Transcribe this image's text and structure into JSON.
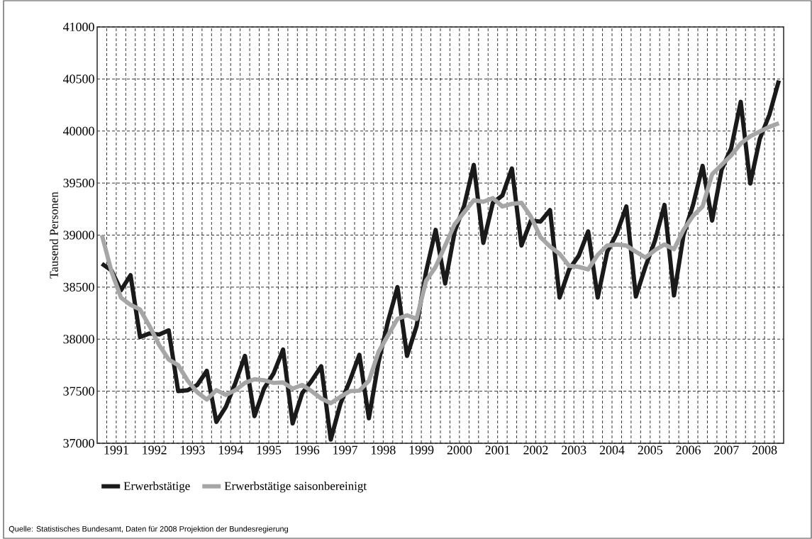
{
  "chart_data": {
    "type": "line",
    "ylabel": "Tausend Personen",
    "annotations": [
      "Quelle: Statistisches Bundesamt, Daten für 2008 Projektion der Bundesregierung"
    ],
    "x": [
      1991.0,
      1991.25,
      1991.5,
      1991.75,
      1992.0,
      1992.25,
      1992.5,
      1992.75,
      1993.0,
      1993.25,
      1993.5,
      1993.75,
      1994.0,
      1994.25,
      1994.5,
      1994.75,
      1995.0,
      1995.25,
      1995.5,
      1995.75,
      1996.0,
      1996.25,
      1996.5,
      1996.75,
      1997.0,
      1997.25,
      1997.5,
      1997.75,
      1998.0,
      1998.25,
      1998.5,
      1998.75,
      1999.0,
      1999.25,
      1999.5,
      1999.75,
      2000.0,
      2000.25,
      2000.5,
      2000.75,
      2001.0,
      2001.25,
      2001.5,
      2001.75,
      2002.0,
      2002.25,
      2002.5,
      2002.75,
      2003.0,
      2003.25,
      2003.5,
      2003.75,
      2004.0,
      2004.25,
      2004.5,
      2004.75,
      2005.0,
      2005.25,
      2005.5,
      2005.75,
      2006.0,
      2006.25,
      2006.5,
      2006.75,
      2007.0,
      2007.25,
      2007.5,
      2007.75,
      2008.0,
      2008.25,
      2008.5,
      2008.75
    ],
    "series": [
      {
        "name": "Erwerbstätige",
        "color": "#1a1a1a",
        "values": [
          38725,
          38660,
          38470,
          38615,
          38020,
          38055,
          38045,
          38085,
          37500,
          37510,
          37560,
          37695,
          37205,
          37350,
          37580,
          37840,
          37260,
          37525,
          37670,
          37900,
          37190,
          37480,
          37600,
          37740,
          37035,
          37375,
          37600,
          37850,
          37240,
          37775,
          38170,
          38500,
          37840,
          38125,
          38650,
          39050,
          38535,
          39035,
          39285,
          39675,
          38925,
          39310,
          39380,
          39640,
          38900,
          39140,
          39130,
          39240,
          38400,
          38670,
          38800,
          39035,
          38400,
          38840,
          39015,
          39275,
          38410,
          38695,
          38945,
          39290,
          38420,
          39000,
          39290,
          39665,
          39140,
          39630,
          39835,
          40280,
          39495,
          39925,
          40155,
          40485
        ]
      },
      {
        "name": "Erwerbstätige saisonbereinigt",
        "color": "#a6a6a6",
        "values": [
          39000,
          38650,
          38400,
          38330,
          38285,
          38125,
          37945,
          37805,
          37750,
          37600,
          37490,
          37420,
          37510,
          37465,
          37510,
          37580,
          37615,
          37605,
          37580,
          37585,
          37525,
          37560,
          37500,
          37430,
          37385,
          37445,
          37500,
          37505,
          37600,
          37875,
          38035,
          38195,
          38230,
          38195,
          38560,
          38695,
          38900,
          39105,
          39220,
          39335,
          39320,
          39355,
          39275,
          39300,
          39310,
          39175,
          38980,
          38890,
          38820,
          38705,
          38695,
          38670,
          38810,
          38900,
          38910,
          38900,
          38840,
          38785,
          38855,
          38910,
          38865,
          39050,
          39185,
          39275,
          39585,
          39675,
          39765,
          39880,
          39950,
          39995,
          40040,
          40075
        ]
      }
    ],
    "xlim": [
      1990.875,
      2008.875
    ],
    "xticks": [
      {
        "value": 1991.125,
        "label": null
      },
      {
        "value": 1991.375,
        "label": "1991"
      },
      {
        "value": 1991.625,
        "label": null
      },
      {
        "value": 1991.875,
        "label": null
      },
      {
        "value": 1992.125,
        "label": null
      },
      {
        "value": 1992.375,
        "label": "1992"
      },
      {
        "value": 1992.625,
        "label": null
      },
      {
        "value": 1992.875,
        "label": null
      },
      {
        "value": 1993.125,
        "label": null
      },
      {
        "value": 1993.375,
        "label": "1993"
      },
      {
        "value": 1993.625,
        "label": null
      },
      {
        "value": 1993.875,
        "label": null
      },
      {
        "value": 1994.125,
        "label": null
      },
      {
        "value": 1994.375,
        "label": "1994"
      },
      {
        "value": 1994.625,
        "label": null
      },
      {
        "value": 1994.875,
        "label": null
      },
      {
        "value": 1995.125,
        "label": null
      },
      {
        "value": 1995.375,
        "label": "1995"
      },
      {
        "value": 1995.625,
        "label": null
      },
      {
        "value": 1995.875,
        "label": null
      },
      {
        "value": 1996.125,
        "label": null
      },
      {
        "value": 1996.375,
        "label": "1996"
      },
      {
        "value": 1996.625,
        "label": null
      },
      {
        "value": 1996.875,
        "label": null
      },
      {
        "value": 1997.125,
        "label": null
      },
      {
        "value": 1997.375,
        "label": "1997"
      },
      {
        "value": 1997.625,
        "label": null
      },
      {
        "value": 1997.875,
        "label": null
      },
      {
        "value": 1998.125,
        "label": null
      },
      {
        "value": 1998.375,
        "label": "1998"
      },
      {
        "value": 1998.625,
        "label": null
      },
      {
        "value": 1998.875,
        "label": null
      },
      {
        "value": 1999.125,
        "label": null
      },
      {
        "value": 1999.375,
        "label": "1999"
      },
      {
        "value": 1999.625,
        "label": null
      },
      {
        "value": 1999.875,
        "label": null
      },
      {
        "value": 2000.125,
        "label": null
      },
      {
        "value": 2000.375,
        "label": "2000"
      },
      {
        "value": 2000.625,
        "label": null
      },
      {
        "value": 2000.875,
        "label": null
      },
      {
        "value": 2001.125,
        "label": null
      },
      {
        "value": 2001.375,
        "label": "2001"
      },
      {
        "value": 2001.625,
        "label": null
      },
      {
        "value": 2001.875,
        "label": null
      },
      {
        "value": 2002.125,
        "label": null
      },
      {
        "value": 2002.375,
        "label": "2002"
      },
      {
        "value": 2002.625,
        "label": null
      },
      {
        "value": 2002.875,
        "label": null
      },
      {
        "value": 2003.125,
        "label": null
      },
      {
        "value": 2003.375,
        "label": "2003"
      },
      {
        "value": 2003.625,
        "label": null
      },
      {
        "value": 2003.875,
        "label": null
      },
      {
        "value": 2004.125,
        "label": null
      },
      {
        "value": 2004.375,
        "label": "2004"
      },
      {
        "value": 2004.625,
        "label": null
      },
      {
        "value": 2004.875,
        "label": null
      },
      {
        "value": 2005.125,
        "label": null
      },
      {
        "value": 2005.375,
        "label": "2005"
      },
      {
        "value": 2005.625,
        "label": null
      },
      {
        "value": 2005.875,
        "label": null
      },
      {
        "value": 2006.125,
        "label": null
      },
      {
        "value": 2006.375,
        "label": "2006"
      },
      {
        "value": 2006.625,
        "label": null
      },
      {
        "value": 2006.875,
        "label": null
      },
      {
        "value": 2007.125,
        "label": null
      },
      {
        "value": 2007.375,
        "label": "2007"
      },
      {
        "value": 2007.625,
        "label": null
      },
      {
        "value": 2007.875,
        "label": null
      },
      {
        "value": 2008.125,
        "label": null
      },
      {
        "value": 2008.375,
        "label": "2008"
      },
      {
        "value": 2008.625,
        "label": null
      }
    ],
    "ylim": [
      37000,
      41000
    ],
    "yticks": [
      37000,
      37500,
      38000,
      38500,
      39000,
      39500,
      40000,
      40500,
      41000
    ],
    "grid": true,
    "legend": "bottom",
    "line_style": "solid"
  }
}
